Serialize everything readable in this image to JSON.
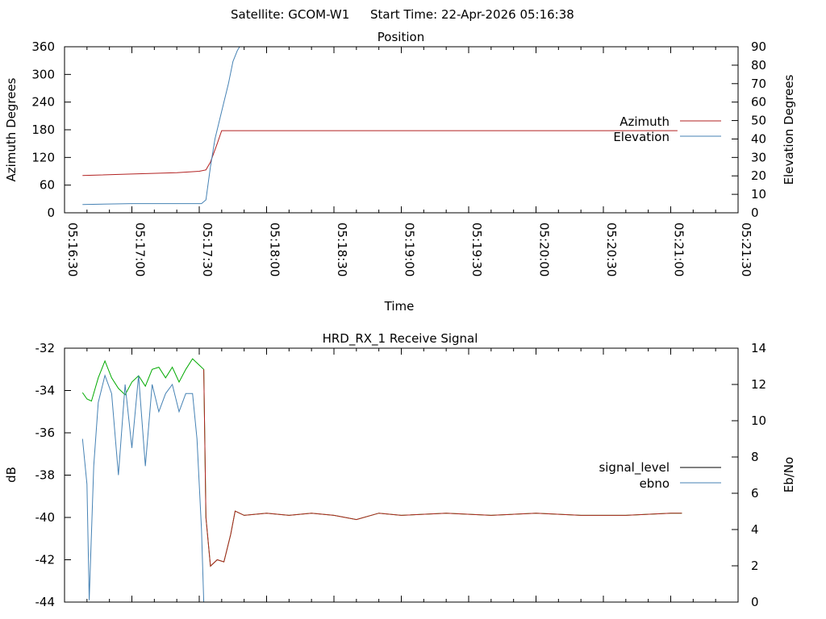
{
  "header": {
    "satellite": "Satellite: GCOM-W1",
    "start_time": "Start Time: 22-Apr-2026 05:16:38"
  },
  "colors": {
    "azimuth": "#b22222",
    "elevation": "#4682b4",
    "signal_level": "#00aa00",
    "signal_level_legend": "#000000",
    "ebno": "#4682b4"
  },
  "chart_data": [
    {
      "type": "line",
      "title": "Position",
      "xlabel": "Time",
      "ylabel": "Azimuth Degrees",
      "y2label": "Elevation Degrees",
      "xlim": [
        "05:16:30",
        "05:21:30"
      ],
      "ylim": [
        0,
        360
      ],
      "y2lim": [
        0,
        90
      ],
      "x_ticks": [
        "05:16:30",
        "05:17:00",
        "05:17:30",
        "05:18:00",
        "05:18:30",
        "05:19:00",
        "05:19:30",
        "05:20:00",
        "05:20:30",
        "05:21:00",
        "05:21:30"
      ],
      "y_ticks": [
        "0",
        "60",
        "120",
        "180",
        "240",
        "300",
        "360"
      ],
      "y2_ticks": [
        "0",
        "10",
        "20",
        "30",
        "40",
        "50",
        "60",
        "70",
        "80",
        "90"
      ],
      "grid": false,
      "legend": "right",
      "series": [
        {
          "name": "Azimuth",
          "axis": "y",
          "x": [
            "05:16:38",
            "05:17:00",
            "05:17:20",
            "05:17:30",
            "05:17:33",
            "05:17:35",
            "05:17:38",
            "05:17:40",
            "05:18:00",
            "05:19:00",
            "05:20:00",
            "05:21:03"
          ],
          "values": [
            81,
            84,
            87,
            90,
            93,
            110,
            150,
            178,
            178,
            178,
            178,
            178
          ]
        },
        {
          "name": "Elevation",
          "axis": "y2",
          "x": [
            "05:16:38",
            "05:17:00",
            "05:17:20",
            "05:17:31",
            "05:17:33",
            "05:17:35",
            "05:17:37",
            "05:17:40",
            "05:17:43",
            "05:17:45",
            "05:17:47",
            "05:17:48"
          ],
          "values": [
            4.5,
            5,
            5,
            5,
            7,
            25,
            40,
            55,
            70,
            82,
            88,
            90
          ]
        }
      ]
    },
    {
      "type": "line",
      "title": "HRD_RX_1 Receive Signal",
      "xlabel": "",
      "ylabel": "dB",
      "y2label": "Eb/No",
      "xlim": [
        "05:16:30",
        "05:21:30"
      ],
      "ylim": [
        -44,
        -32
      ],
      "y2lim": [
        0,
        14
      ],
      "y_ticks": [
        "-44",
        "-42",
        "-40",
        "-38",
        "-36",
        "-34",
        "-32"
      ],
      "y2_ticks": [
        "0",
        "2",
        "4",
        "6",
        "8",
        "10",
        "12",
        "14"
      ],
      "grid": false,
      "legend": "right",
      "series": [
        {
          "name": "signal_level",
          "axis": "y",
          "x": [
            "05:16:38",
            "05:16:40",
            "05:16:42",
            "05:16:45",
            "05:16:48",
            "05:16:51",
            "05:16:54",
            "05:16:57",
            "05:17:00",
            "05:17:03",
            "05:17:06",
            "05:17:09",
            "05:17:12",
            "05:17:15",
            "05:17:18",
            "05:17:21",
            "05:17:24",
            "05:17:27",
            "05:17:30",
            "05:17:32",
            "05:17:33",
            "05:17:35",
            "05:17:38",
            "05:17:41",
            "05:17:44",
            "05:17:46",
            "05:17:50",
            "05:18:00",
            "05:18:10",
            "05:18:20",
            "05:18:30",
            "05:18:40",
            "05:18:50",
            "05:19:00",
            "05:19:20",
            "05:19:40",
            "05:20:00",
            "05:20:20",
            "05:20:40",
            "05:21:00",
            "05:21:05"
          ],
          "values": [
            -34.1,
            -34.4,
            -34.5,
            -33.4,
            -32.6,
            -33.4,
            -33.9,
            -34.2,
            -33.6,
            -33.3,
            -33.8,
            -33.0,
            -32.9,
            -33.4,
            -32.9,
            -33.6,
            -33.0,
            -32.5,
            -32.8,
            -33.0,
            -40.0,
            -42.3,
            -42.0,
            -42.1,
            -40.8,
            -39.7,
            -39.9,
            -39.8,
            -39.9,
            -39.8,
            -39.9,
            -40.1,
            -39.8,
            -39.9,
            -39.8,
            -39.9,
            -39.8,
            -39.9,
            -39.9,
            -39.8,
            -39.8
          ]
        },
        {
          "name": "ebno",
          "axis": "y2",
          "x": [
            "05:16:38",
            "05:16:40",
            "05:16:41",
            "05:16:43",
            "05:16:45",
            "05:16:48",
            "05:16:51",
            "05:16:54",
            "05:16:57",
            "05:17:00",
            "05:17:03",
            "05:17:06",
            "05:17:09",
            "05:17:12",
            "05:17:15",
            "05:17:18",
            "05:17:21",
            "05:17:24",
            "05:17:27",
            "05:17:29",
            "05:17:31",
            "05:17:32"
          ],
          "values": [
            9.0,
            6.5,
            0.1,
            7.5,
            11.0,
            12.5,
            11.5,
            7.0,
            12.0,
            8.5,
            12.5,
            7.5,
            12.0,
            10.5,
            11.5,
            12.0,
            10.5,
            11.5,
            11.5,
            9.0,
            4.0,
            0.0
          ]
        }
      ]
    }
  ]
}
